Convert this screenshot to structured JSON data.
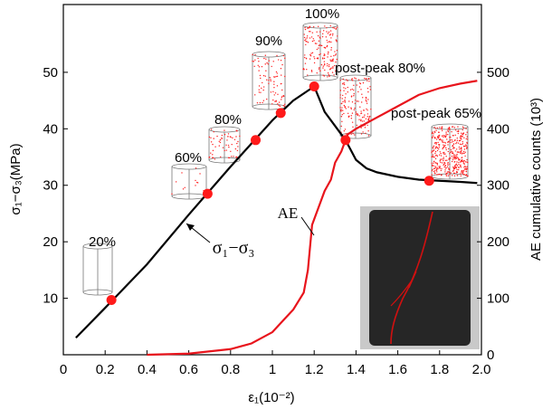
{
  "chart_data": {
    "type": "line",
    "x_label": "ε₁(10⁻²)",
    "y_label": "σ₁−σ₃(MPa)",
    "y2_label": "AE cumulative counts (10³)",
    "xlim": [
      0,
      2.0
    ],
    "xticks": [
      0,
      0.2,
      0.4,
      0.6,
      0.8,
      1,
      1.2,
      1.4,
      1.6,
      1.8,
      {
        "value": 2,
        "label": "2.0"
      }
    ],
    "ylim": [
      0,
      62
    ],
    "yticks": [
      10,
      20,
      30,
      40,
      50
    ],
    "y2lim": [
      0,
      620
    ],
    "y2ticks": [
      0,
      100,
      200,
      300,
      400,
      500
    ],
    "series": [
      {
        "name": "σ₁−σ₃",
        "color": "#000000",
        "x": [
          0.06,
          0.2,
          0.4,
          0.6,
          0.8,
          1.0,
          1.1,
          1.2,
          1.25,
          1.3,
          1.35,
          1.4,
          1.45,
          1.5,
          1.6,
          1.7,
          1.8,
          1.9,
          1.98
        ],
        "values": [
          3,
          8.3,
          16,
          24.8,
          33.3,
          41.5,
          45,
          47.5,
          43,
          40.5,
          38,
          34.5,
          33,
          32.3,
          31.5,
          31,
          30.8,
          30.6,
          30.4
        ]
      },
      {
        "name": "AE",
        "color": "#e8141c",
        "axis": "y2",
        "x": [
          0.4,
          0.6,
          0.8,
          0.9,
          1.0,
          1.05,
          1.1,
          1.15,
          1.17,
          1.19,
          1.22,
          1.25,
          1.28,
          1.3,
          1.33,
          1.36,
          1.4,
          1.5,
          1.6,
          1.7,
          1.8,
          1.9,
          1.98
        ],
        "values": [
          0,
          2,
          10,
          20,
          40,
          60,
          80,
          110,
          150,
          230,
          260,
          290,
          310,
          340,
          360,
          390,
          400,
          420,
          440,
          460,
          472,
          480,
          485
        ]
      }
    ],
    "points": {
      "color": "#ff1a1a",
      "x": [
        0.23,
        0.69,
        0.92,
        1.04,
        1.2,
        1.35,
        1.75
      ],
      "values": [
        9.7,
        28.5,
        38,
        42.8,
        47.5,
        38,
        30.8
      ]
    },
    "stages": [
      "20%",
      "60%",
      "80%",
      "90%",
      "100%",
      "post-peak 80%",
      "post-peak 65%"
    ]
  }
}
